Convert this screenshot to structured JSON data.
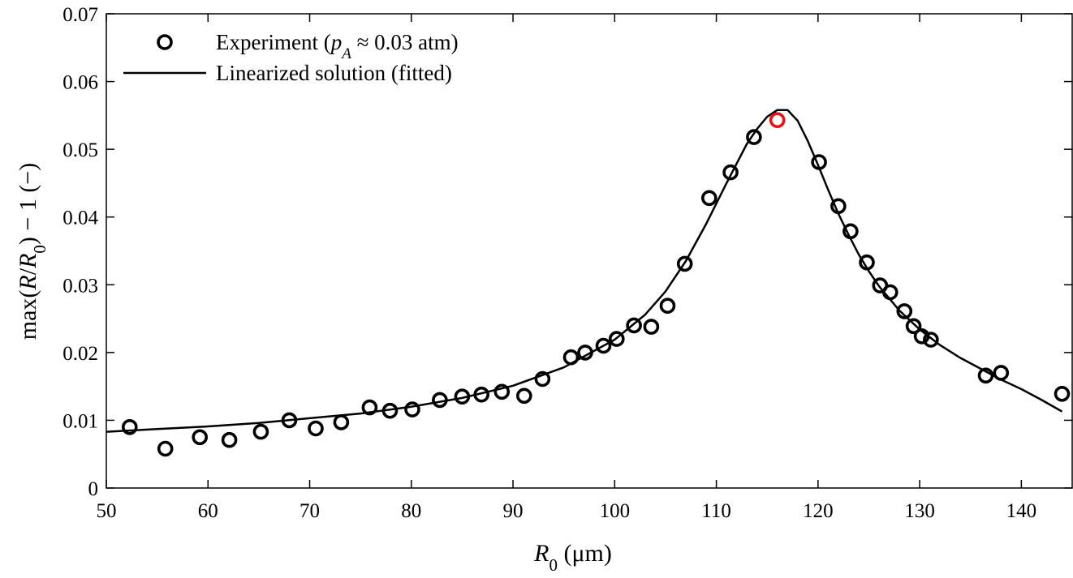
{
  "chart_data": {
    "type": "scatter",
    "title": "",
    "xlabel": {
      "main": "R",
      "sub": "0",
      "unit": " (μm)"
    },
    "ylabel": {
      "p1": "max(",
      "p2": "R",
      "p3": "/",
      "p4": "R",
      "p5": "0",
      "p6": ") − 1 (−)"
    },
    "xlim": [
      50,
      145
    ],
    "ylim": [
      0,
      0.07
    ],
    "xticks": [
      50,
      60,
      70,
      80,
      90,
      100,
      110,
      120,
      130,
      140
    ],
    "yticks": [
      0,
      0.01,
      0.02,
      0.03,
      0.04,
      0.05,
      0.06,
      0.07
    ],
    "xtick_labels": [
      "50",
      "60",
      "70",
      "80",
      "90",
      "100",
      "110",
      "120",
      "130",
      "140"
    ],
    "ytick_labels": [
      "0",
      "0.01",
      "0.02",
      "0.03",
      "0.04",
      "0.05",
      "0.06",
      "0.07"
    ],
    "grid": false,
    "legend_position": "top-left",
    "legend": {
      "experiment": {
        "prefix": "Experiment (",
        "var": "p",
        "sub": "A",
        "suffix": " ≈ 0.03 atm)"
      },
      "fit": "Linearized solution (fitted)"
    },
    "series": [
      {
        "kind": "markers",
        "color": "#000000",
        "points": [
          [
            52.3,
            0.009
          ],
          [
            55.8,
            0.0058
          ],
          [
            59.2,
            0.0075
          ],
          [
            62.1,
            0.0071
          ],
          [
            65.2,
            0.0083
          ],
          [
            68.0,
            0.01
          ],
          [
            70.6,
            0.0088
          ],
          [
            73.1,
            0.0097
          ],
          [
            75.9,
            0.0119
          ],
          [
            77.9,
            0.0114
          ],
          [
            80.1,
            0.0116
          ],
          [
            82.8,
            0.013
          ],
          [
            85.0,
            0.0135
          ],
          [
            86.9,
            0.0138
          ],
          [
            88.9,
            0.0142
          ],
          [
            91.1,
            0.0136
          ],
          [
            92.9,
            0.0161
          ],
          [
            95.7,
            0.0193
          ],
          [
            97.1,
            0.02
          ],
          [
            98.9,
            0.021
          ],
          [
            100.2,
            0.022
          ],
          [
            101.9,
            0.024
          ],
          [
            103.6,
            0.0238
          ],
          [
            105.2,
            0.0269
          ],
          [
            106.9,
            0.0331
          ],
          [
            109.3,
            0.0428
          ],
          [
            111.4,
            0.0466
          ],
          [
            113.7,
            0.0518
          ],
          [
            120.1,
            0.0481
          ],
          [
            122.0,
            0.0416
          ],
          [
            123.2,
            0.0379
          ],
          [
            124.8,
            0.0333
          ],
          [
            126.1,
            0.0299
          ],
          [
            127.1,
            0.0289
          ],
          [
            128.5,
            0.0261
          ],
          [
            129.4,
            0.0239
          ],
          [
            130.2,
            0.0224
          ],
          [
            131.1,
            0.0219
          ],
          [
            136.5,
            0.0166
          ],
          [
            138.0,
            0.017
          ],
          [
            144.0,
            0.0139
          ]
        ]
      },
      {
        "kind": "highlight",
        "color": "#e8141a",
        "points": [
          [
            116.0,
            0.0543
          ]
        ]
      },
      {
        "kind": "curve",
        "color": "#000000",
        "points": [
          [
            50,
            0.0083
          ],
          [
            55,
            0.0087
          ],
          [
            60,
            0.0091
          ],
          [
            65,
            0.0096
          ],
          [
            70,
            0.0103
          ],
          [
            75,
            0.011
          ],
          [
            80,
            0.012
          ],
          [
            85,
            0.0133
          ],
          [
            90,
            0.0151
          ],
          [
            95,
            0.0178
          ],
          [
            100,
            0.0219
          ],
          [
            103,
            0.0256
          ],
          [
            105,
            0.029
          ],
          [
            107,
            0.0335
          ],
          [
            109,
            0.039
          ],
          [
            111,
            0.045
          ],
          [
            113,
            0.0508
          ],
          [
            114,
            0.053
          ],
          [
            115,
            0.0548
          ],
          [
            116,
            0.0558
          ],
          [
            117,
            0.0558
          ],
          [
            118,
            0.0542
          ],
          [
            119,
            0.0512
          ],
          [
            120,
            0.0477
          ],
          [
            121,
            0.044
          ],
          [
            122,
            0.0405
          ],
          [
            123,
            0.0374
          ],
          [
            124,
            0.0345
          ],
          [
            125,
            0.032
          ],
          [
            126,
            0.0298
          ],
          [
            128,
            0.0262
          ],
          [
            130,
            0.0234
          ],
          [
            132,
            0.0211
          ],
          [
            134,
            0.0192
          ],
          [
            136,
            0.0176
          ],
          [
            138,
            0.016
          ],
          [
            140,
            0.0146
          ],
          [
            142,
            0.013
          ],
          [
            144,
            0.0113
          ]
        ]
      }
    ]
  }
}
